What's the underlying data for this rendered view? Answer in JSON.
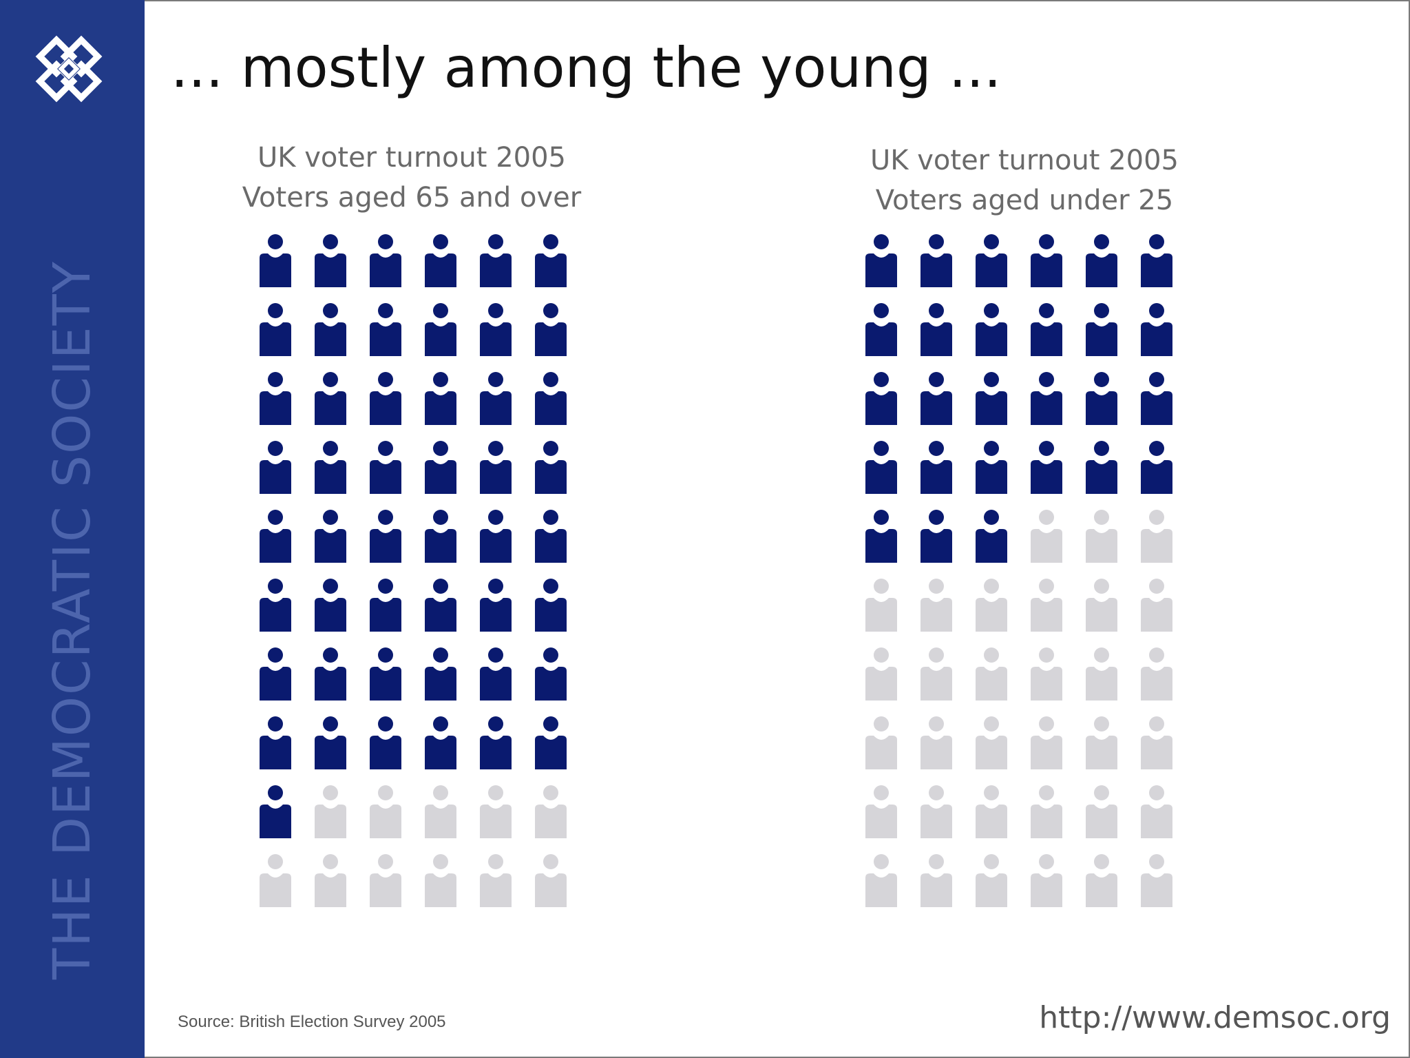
{
  "branding": {
    "name": "THE DEMOCRATIC SOCIETY",
    "logo_icon": "interlaced-diamond-knot-icon",
    "url": "http://www.demsoc.org"
  },
  "main_title": "... mostly among the young ...",
  "source": "Source: British Election Survey 2005",
  "colors": {
    "sidebar": "#213a88",
    "voted": "#0a1a6f",
    "did_not_vote": "#d6d5d9"
  },
  "chart_data": [
    {
      "type": "pictogram",
      "title_lines": [
        "UK voter turnout 2005",
        "Voters aged 65 and over"
      ],
      "icon": "person-icon",
      "total_icons": 60,
      "columns": 6,
      "rows": 10,
      "filled_icons": 49
    },
    {
      "type": "pictogram",
      "title_lines": [
        "UK voter turnout 2005",
        "Voters aged under 25"
      ],
      "icon": "person-icon",
      "total_icons": 60,
      "columns": 6,
      "rows": 10,
      "filled_icons": 27
    }
  ]
}
